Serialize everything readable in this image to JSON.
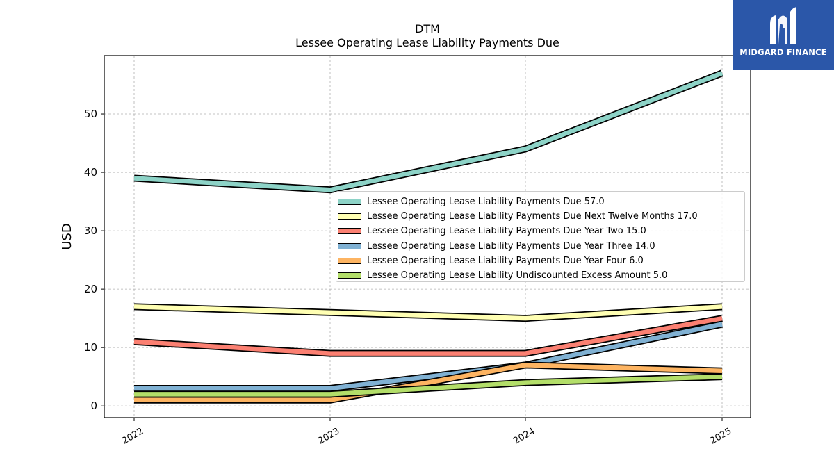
{
  "logo": {
    "text": "MIDGARD FINANCE",
    "mark": "stylized-m-logo"
  },
  "chart_data": {
    "type": "line",
    "title": "DTM",
    "subtitle": "Lessee Operating Lease Liability Payments Due",
    "xlabel": "",
    "ylabel": "USD",
    "categories": [
      "2022",
      "2023",
      "2024",
      "2025"
    ],
    "ylim": [
      -2,
      60
    ],
    "yticks": [
      0,
      10,
      20,
      30,
      40,
      50
    ],
    "grid": true,
    "legend_position": "center-right",
    "series": [
      {
        "name": "Lessee Operating Lease Liability Payments Due  57.0",
        "values": [
          39.0,
          37.0,
          44.0,
          57.0
        ],
        "color": "#8dd3c7"
      },
      {
        "name": "Lessee Operating Lease Liability Payments Due Next Twelve Months  17.0",
        "values": [
          17.0,
          16.0,
          15.0,
          17.0
        ],
        "color": "#ffffb3"
      },
      {
        "name": "Lessee Operating Lease Liability Payments Due Year Two  15.0",
        "values": [
          11.0,
          9.0,
          9.0,
          15.0
        ],
        "color": "#fb8072"
      },
      {
        "name": "Lessee Operating Lease Liability Payments Due Year Three  14.0",
        "values": [
          3.0,
          3.0,
          7.0,
          14.0
        ],
        "color": "#80b1d3"
      },
      {
        "name": "Lessee Operating Lease Liability Payments Due Year Four  6.0",
        "values": [
          1.0,
          1.0,
          7.0,
          6.0
        ],
        "color": "#fdb462"
      },
      {
        "name": "Lessee Operating Lease Liability Undiscounted Excess Amount  5.0",
        "values": [
          2.0,
          2.0,
          4.0,
          5.0
        ],
        "color": "#b3de69"
      }
    ]
  }
}
